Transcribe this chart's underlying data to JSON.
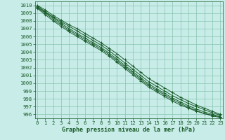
{
  "xlabel": "Graphe pression niveau de la mer (hPa)",
  "xlim": [
    0,
    23
  ],
  "ylim": [
    995.5,
    1010.5
  ],
  "yticks": [
    996,
    997,
    998,
    999,
    1000,
    1001,
    1002,
    1003,
    1004,
    1005,
    1006,
    1007,
    1008,
    1009,
    1010
  ],
  "xticks": [
    0,
    1,
    2,
    3,
    4,
    5,
    6,
    7,
    8,
    9,
    10,
    11,
    12,
    13,
    14,
    15,
    16,
    17,
    18,
    19,
    20,
    21,
    22,
    23
  ],
  "background_color": "#c8ece8",
  "grid_color": "#88c4b0",
  "line_color": "#1a5c2a",
  "lines": [
    [
      1010.0,
      1009.4,
      1008.7,
      1008.1,
      1007.5,
      1007.0,
      1006.4,
      1005.8,
      1005.2,
      1004.5,
      1003.8,
      1003.0,
      1002.2,
      1001.4,
      1000.6,
      1000.0,
      999.4,
      998.8,
      998.2,
      997.7,
      997.2,
      996.8,
      996.4,
      996.0
    ],
    [
      1009.8,
      1009.1,
      1008.4,
      1007.7,
      1007.0,
      1006.4,
      1005.8,
      1005.2,
      1004.6,
      1003.9,
      1003.1,
      1002.3,
      1001.5,
      1000.7,
      999.9,
      999.3,
      998.7,
      998.1,
      997.6,
      997.1,
      996.7,
      996.3,
      996.0,
      995.7
    ],
    [
      1009.6,
      1008.8,
      1008.0,
      1007.3,
      1006.6,
      1006.0,
      1005.4,
      1004.8,
      1004.2,
      1003.5,
      1002.7,
      1001.9,
      1001.1,
      1000.3,
      999.5,
      998.9,
      998.3,
      997.7,
      997.2,
      996.8,
      996.4,
      996.1,
      995.9,
      995.7
    ],
    [
      1009.9,
      1009.2,
      1008.5,
      1007.9,
      1007.3,
      1006.7,
      1006.1,
      1005.5,
      1004.9,
      1004.2,
      1003.4,
      1002.6,
      1001.8,
      1001.0,
      1000.2,
      999.6,
      999.0,
      998.4,
      997.9,
      997.4,
      997.0,
      996.6,
      996.2,
      995.9
    ],
    [
      1009.7,
      1009.0,
      1008.2,
      1007.5,
      1006.8,
      1006.2,
      1005.6,
      1005.0,
      1004.4,
      1003.7,
      1002.9,
      1002.1,
      1001.3,
      1000.5,
      999.7,
      999.1,
      998.5,
      997.9,
      997.4,
      996.9,
      996.5,
      996.1,
      995.8,
      995.6
    ]
  ],
  "tick_fontsize": 5.2,
  "label_fontsize": 6.0
}
